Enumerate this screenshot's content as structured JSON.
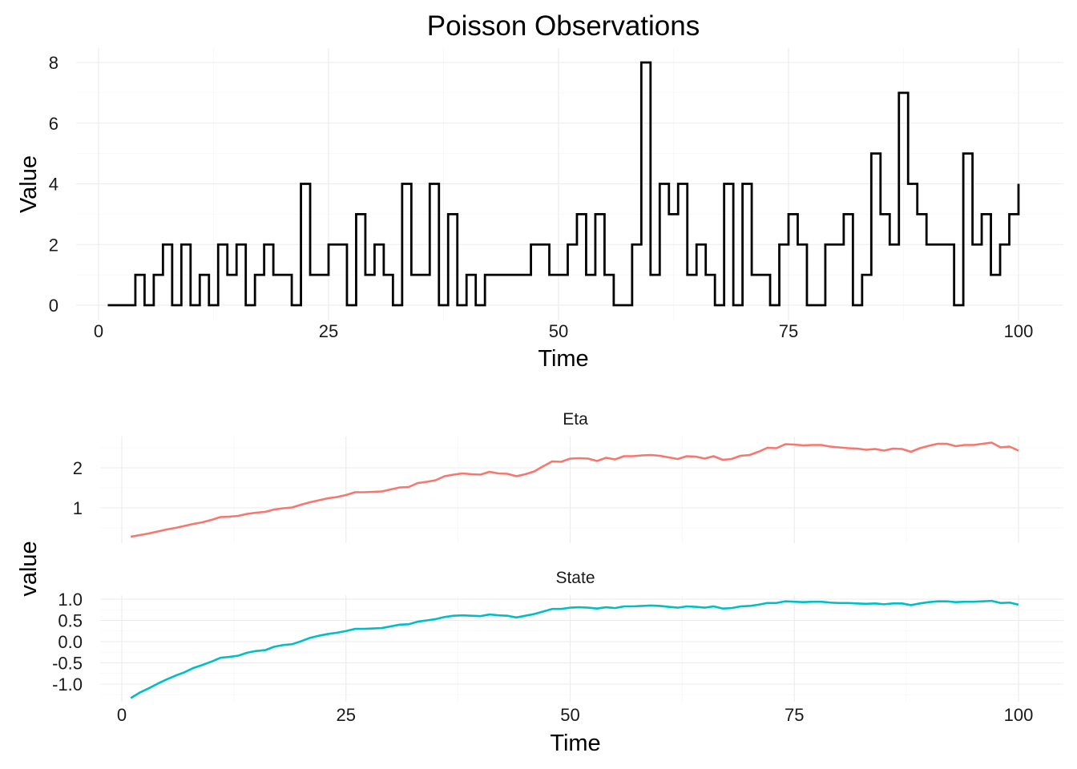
{
  "chart_data": [
    {
      "type": "line",
      "title": "Poisson Observations",
      "xlabel": "Time",
      "ylabel": "Value",
      "xlim": [
        1,
        100
      ],
      "ylim": [
        0,
        8
      ],
      "x_ticks": [
        0,
        25,
        50,
        75,
        100
      ],
      "y_ticks": [
        0,
        2,
        4,
        6,
        8
      ],
      "step": "post",
      "grid": true,
      "series": [
        {
          "color": "#000000",
          "x": [
            1,
            2,
            3,
            4,
            5,
            6,
            7,
            8,
            9,
            10,
            11,
            12,
            13,
            14,
            15,
            16,
            17,
            18,
            19,
            20,
            21,
            22,
            23,
            24,
            25,
            26,
            27,
            28,
            29,
            30,
            31,
            32,
            33,
            34,
            35,
            36,
            37,
            38,
            39,
            40,
            41,
            42,
            43,
            44,
            45,
            46,
            47,
            48,
            49,
            50,
            51,
            52,
            53,
            54,
            55,
            56,
            57,
            58,
            59,
            60,
            61,
            62,
            63,
            64,
            65,
            66,
            67,
            68,
            69,
            70,
            71,
            72,
            73,
            74,
            75,
            76,
            77,
            78,
            79,
            80,
            81,
            82,
            83,
            84,
            85,
            86,
            87,
            88,
            89,
            90,
            91,
            92,
            93,
            94,
            95,
            96,
            97,
            98,
            99,
            100
          ],
          "values": [
            0,
            0,
            0,
            1,
            0,
            1,
            2,
            0,
            2,
            0,
            1,
            0,
            2,
            1,
            2,
            0,
            1,
            2,
            1,
            1,
            0,
            4,
            1,
            1,
            2,
            2,
            0,
            3,
            1,
            2,
            1,
            0,
            4,
            1,
            1,
            4,
            0,
            3,
            0,
            1,
            0,
            1,
            1,
            1,
            1,
            1,
            2,
            2,
            1,
            1,
            2,
            3,
            1,
            3,
            1,
            0,
            0,
            2,
            8,
            1,
            4,
            3,
            4,
            1,
            2,
            1,
            0,
            4,
            0,
            4,
            1,
            1,
            0,
            2,
            3,
            2,
            0,
            0,
            2,
            2,
            3,
            0,
            1,
            5,
            3,
            2,
            7,
            4,
            3,
            2,
            2,
            2,
            0,
            5,
            2,
            3,
            1,
            2,
            3,
            4
          ]
        }
      ]
    },
    {
      "type": "line",
      "title": "",
      "xlabel": "Time",
      "ylabel": "value",
      "xlim": [
        1,
        100
      ],
      "x_ticks": [
        0,
        25,
        50,
        75,
        100
      ],
      "grid": true,
      "legend": "none",
      "panels": [
        {
          "strip": "Eta",
          "color": "#F8766D",
          "y_ticks": [
            1,
            2
          ],
          "ylim": [
            0.28,
            2.65
          ],
          "x": [
            1,
            2,
            3,
            4,
            5,
            6,
            7,
            8,
            9,
            10,
            11,
            12,
            13,
            14,
            15,
            16,
            17,
            18,
            19,
            20,
            21,
            22,
            23,
            24,
            25,
            26,
            27,
            28,
            29,
            30,
            31,
            32,
            33,
            34,
            35,
            36,
            37,
            38,
            39,
            40,
            41,
            42,
            43,
            44,
            45,
            46,
            47,
            48,
            49,
            50,
            51,
            52,
            53,
            54,
            55,
            56,
            57,
            58,
            59,
            60,
            61,
            62,
            63,
            64,
            65,
            66,
            67,
            68,
            69,
            70,
            71,
            72,
            73,
            74,
            75,
            76,
            77,
            78,
            79,
            80,
            81,
            82,
            83,
            84,
            85,
            86,
            87,
            88,
            89,
            90,
            91,
            92,
            93,
            94,
            95,
            96,
            97,
            98,
            99,
            100
          ],
          "values": [
            0.28,
            0.32,
            0.36,
            0.41,
            0.46,
            0.5,
            0.55,
            0.6,
            0.64,
            0.7,
            0.77,
            0.78,
            0.8,
            0.85,
            0.88,
            0.9,
            0.96,
            0.99,
            1.01,
            1.08,
            1.14,
            1.19,
            1.24,
            1.27,
            1.32,
            1.39,
            1.39,
            1.4,
            1.41,
            1.46,
            1.51,
            1.52,
            1.62,
            1.65,
            1.69,
            1.79,
            1.83,
            1.86,
            1.84,
            1.83,
            1.9,
            1.86,
            1.85,
            1.79,
            1.84,
            1.91,
            2.04,
            2.16,
            2.15,
            2.23,
            2.24,
            2.23,
            2.17,
            2.25,
            2.21,
            2.29,
            2.29,
            2.31,
            2.32,
            2.3,
            2.26,
            2.22,
            2.29,
            2.28,
            2.23,
            2.29,
            2.2,
            2.22,
            2.3,
            2.32,
            2.4,
            2.5,
            2.49,
            2.59,
            2.58,
            2.56,
            2.57,
            2.57,
            2.53,
            2.51,
            2.49,
            2.48,
            2.45,
            2.47,
            2.43,
            2.48,
            2.47,
            2.4,
            2.49,
            2.55,
            2.6,
            2.6,
            2.54,
            2.57,
            2.57,
            2.6,
            2.63,
            2.51,
            2.53,
            2.43
          ]
        },
        {
          "strip": "State",
          "color": "#00BFC4",
          "y_ticks": [
            -1.0,
            -0.5,
            0.0,
            0.5,
            1.0
          ],
          "y_tick_labels": [
            "-1.0",
            "-0.5",
            "0.0",
            "0.5",
            "1.0"
          ],
          "ylim": [
            -1.35,
            0.95
          ],
          "x": [
            1,
            2,
            3,
            4,
            5,
            6,
            7,
            8,
            9,
            10,
            11,
            12,
            13,
            14,
            15,
            16,
            17,
            18,
            19,
            20,
            21,
            22,
            23,
            24,
            25,
            26,
            27,
            28,
            29,
            30,
            31,
            32,
            33,
            34,
            35,
            36,
            37,
            38,
            39,
            40,
            41,
            42,
            43,
            44,
            45,
            46,
            47,
            48,
            49,
            50,
            51,
            52,
            53,
            54,
            55,
            56,
            57,
            58,
            59,
            60,
            61,
            62,
            63,
            64,
            65,
            66,
            67,
            68,
            69,
            70,
            71,
            72,
            73,
            74,
            75,
            76,
            77,
            78,
            79,
            80,
            81,
            82,
            83,
            84,
            85,
            86,
            87,
            88,
            89,
            90,
            91,
            92,
            93,
            94,
            95,
            96,
            97,
            98,
            99,
            100
          ],
          "values": [
            -1.33,
            -1.2,
            -1.1,
            -0.99,
            -0.89,
            -0.8,
            -0.72,
            -0.62,
            -0.55,
            -0.47,
            -0.38,
            -0.36,
            -0.33,
            -0.26,
            -0.22,
            -0.2,
            -0.12,
            -0.08,
            -0.06,
            0.01,
            0.09,
            0.14,
            0.18,
            0.21,
            0.25,
            0.3,
            0.3,
            0.31,
            0.32,
            0.36,
            0.4,
            0.41,
            0.47,
            0.5,
            0.53,
            0.58,
            0.61,
            0.62,
            0.61,
            0.6,
            0.64,
            0.62,
            0.61,
            0.57,
            0.61,
            0.65,
            0.71,
            0.77,
            0.77,
            0.8,
            0.81,
            0.8,
            0.78,
            0.81,
            0.79,
            0.83,
            0.83,
            0.84,
            0.85,
            0.84,
            0.82,
            0.8,
            0.83,
            0.82,
            0.8,
            0.83,
            0.78,
            0.79,
            0.83,
            0.84,
            0.87,
            0.91,
            0.91,
            0.95,
            0.94,
            0.93,
            0.94,
            0.94,
            0.92,
            0.91,
            0.91,
            0.9,
            0.89,
            0.9,
            0.88,
            0.9,
            0.9,
            0.86,
            0.9,
            0.93,
            0.95,
            0.95,
            0.93,
            0.94,
            0.94,
            0.95,
            0.96,
            0.91,
            0.92,
            0.87
          ]
        }
      ]
    }
  ]
}
